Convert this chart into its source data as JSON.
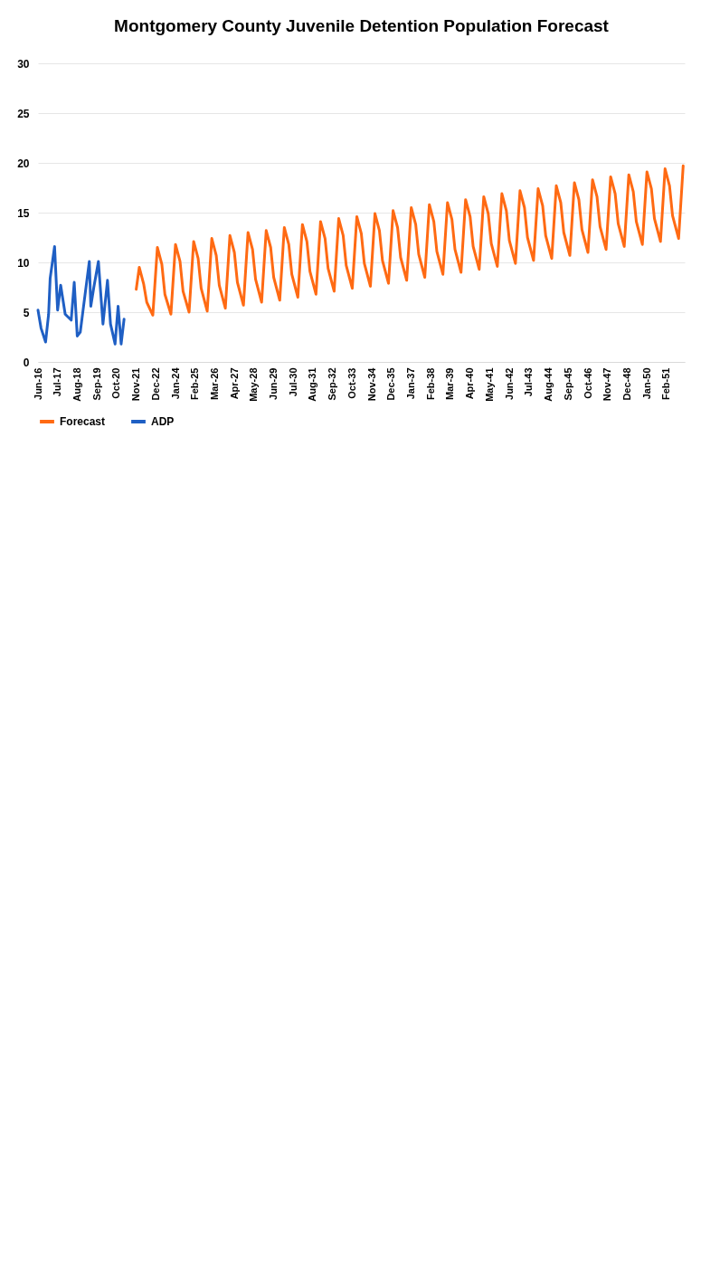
{
  "chart_data": {
    "type": "line",
    "title": "Montgomery County Juvenile Detention Population Forecast",
    "xlim": [
      "2016-06",
      "2052-02"
    ],
    "xticks": [
      {
        "value": "2016-06",
        "label": "Jun-16"
      },
      {
        "value": "2017-07",
        "label": "Jul-17"
      },
      {
        "value": "2018-08",
        "label": "Aug-18"
      },
      {
        "value": "2019-09",
        "label": "Sep-19"
      },
      {
        "value": "2020-10",
        "label": "Oct-20"
      },
      {
        "value": "2021-11",
        "label": "Nov-21"
      },
      {
        "value": "2022-12",
        "label": "Dec-22"
      },
      {
        "value": "2024-01",
        "label": "Jan-24"
      },
      {
        "value": "2025-02",
        "label": "Feb-25"
      },
      {
        "value": "2026-03",
        "label": "Mar-26"
      },
      {
        "value": "2027-04",
        "label": "Apr-27"
      },
      {
        "value": "2028-05",
        "label": "May-28"
      },
      {
        "value": "2029-06",
        "label": "Jun-29"
      },
      {
        "value": "2030-07",
        "label": "Jul-30"
      },
      {
        "value": "2031-08",
        "label": "Aug-31"
      },
      {
        "value": "2032-09",
        "label": "Sep-32"
      },
      {
        "value": "2033-10",
        "label": "Oct-33"
      },
      {
        "value": "2034-11",
        "label": "Nov-34"
      },
      {
        "value": "2035-12",
        "label": "Dec-35"
      },
      {
        "value": "2037-01",
        "label": "Jan-37"
      },
      {
        "value": "2038-02",
        "label": "Feb-38"
      },
      {
        "value": "2039-03",
        "label": "Mar-39"
      },
      {
        "value": "2040-04",
        "label": "Apr-40"
      },
      {
        "value": "2041-05",
        "label": "May-41"
      },
      {
        "value": "2042-06",
        "label": "Jun-42"
      },
      {
        "value": "2043-07",
        "label": "Jul-43"
      },
      {
        "value": "2044-08",
        "label": "Aug-44"
      },
      {
        "value": "2045-09",
        "label": "Sep-45"
      },
      {
        "value": "2046-10",
        "label": "Oct-46"
      },
      {
        "value": "2047-11",
        "label": "Nov-47"
      },
      {
        "value": "2048-12",
        "label": "Dec-48"
      },
      {
        "value": "2050-01",
        "label": "Jan-50"
      },
      {
        "value": "2051-02",
        "label": "Feb-51"
      }
    ],
    "ylim": [
      0,
      30
    ],
    "yticks": [
      0,
      5,
      10,
      15,
      20,
      25,
      30
    ],
    "grid": "y",
    "legend": "bottom",
    "series": [
      {
        "name": "Forecast",
        "color": "#ff6a13",
        "x": [
          "2021-11",
          "2022-01",
          "2022-04",
          "2022-06",
          "2022-10",
          "2023-01",
          "2023-04",
          "2023-06",
          "2023-10",
          "2024-01",
          "2024-04",
          "2024-06",
          "2024-10",
          "2025-01",
          "2025-04",
          "2025-06",
          "2025-10",
          "2026-01",
          "2026-04",
          "2026-06",
          "2026-10",
          "2027-01",
          "2027-04",
          "2027-06",
          "2027-10",
          "2028-01",
          "2028-04",
          "2028-06",
          "2028-10",
          "2029-01",
          "2029-04",
          "2029-06",
          "2029-10",
          "2030-01",
          "2030-04",
          "2030-06",
          "2030-10",
          "2031-01",
          "2031-04",
          "2031-06",
          "2031-10",
          "2032-01",
          "2032-04",
          "2032-06",
          "2032-10",
          "2033-01",
          "2033-04",
          "2033-06",
          "2033-10",
          "2034-01",
          "2034-04",
          "2034-06",
          "2034-10",
          "2035-01",
          "2035-04",
          "2035-06",
          "2035-10",
          "2036-01",
          "2036-04",
          "2036-06",
          "2036-10",
          "2037-01",
          "2037-04",
          "2037-06",
          "2037-10",
          "2038-01",
          "2038-04",
          "2038-06",
          "2038-10",
          "2039-01",
          "2039-04",
          "2039-06",
          "2039-10",
          "2040-01",
          "2040-04",
          "2040-06",
          "2040-10",
          "2041-01",
          "2041-04",
          "2041-06",
          "2041-10",
          "2042-01",
          "2042-04",
          "2042-06",
          "2042-10",
          "2043-01",
          "2043-04",
          "2043-06",
          "2043-10",
          "2044-01",
          "2044-04",
          "2044-06",
          "2044-10",
          "2045-01",
          "2045-04",
          "2045-06",
          "2045-10",
          "2046-01",
          "2046-04",
          "2046-06",
          "2046-10",
          "2047-01",
          "2047-04",
          "2047-06",
          "2047-10",
          "2048-01",
          "2048-04",
          "2048-06",
          "2048-10",
          "2049-01",
          "2049-04",
          "2049-06",
          "2049-10",
          "2050-01",
          "2050-04",
          "2050-06",
          "2050-10",
          "2051-01",
          "2051-04",
          "2051-06",
          "2051-10",
          "2052-01"
        ],
        "values": [
          7.3,
          9.5,
          7.8,
          6.0,
          4.7,
          11.5,
          9.8,
          6.8,
          4.8,
          11.8,
          10.1,
          7.1,
          5.0,
          12.1,
          10.4,
          7.4,
          5.1,
          12.4,
          10.7,
          7.7,
          5.4,
          12.7,
          11.0,
          8.0,
          5.7,
          13.0,
          11.3,
          8.3,
          6.0,
          13.2,
          11.5,
          8.5,
          6.2,
          13.5,
          11.8,
          8.8,
          6.5,
          13.8,
          12.1,
          9.1,
          6.8,
          14.1,
          12.4,
          9.4,
          7.1,
          14.4,
          12.7,
          9.7,
          7.4,
          14.6,
          12.9,
          9.9,
          7.6,
          14.9,
          13.2,
          10.2,
          7.9,
          15.2,
          13.5,
          10.5,
          8.2,
          15.5,
          13.8,
          10.8,
          8.5,
          15.8,
          14.1,
          11.1,
          8.8,
          16.0,
          14.3,
          11.3,
          9.0,
          16.3,
          14.6,
          11.6,
          9.3,
          16.6,
          14.9,
          11.9,
          9.6,
          16.9,
          15.2,
          12.2,
          9.9,
          17.2,
          15.5,
          12.5,
          10.2,
          17.4,
          15.7,
          12.7,
          10.4,
          17.7,
          16.0,
          13.0,
          10.7,
          18.0,
          16.3,
          13.3,
          11.0,
          18.3,
          16.6,
          13.6,
          11.3,
          18.6,
          16.9,
          13.9,
          11.6,
          18.8,
          17.1,
          14.1,
          11.8,
          19.1,
          17.4,
          14.4,
          12.1,
          19.4,
          17.7,
          14.7,
          12.4,
          19.7
        ]
      },
      {
        "name": "ADP",
        "color": "#1f5fc4",
        "x": [
          "2016-06",
          "2016-08",
          "2016-11",
          "2017-01",
          "2017-02",
          "2017-05",
          "2017-07",
          "2017-09",
          "2017-12",
          "2018-04",
          "2018-06",
          "2018-08",
          "2018-10",
          "2018-12",
          "2019-04",
          "2019-05",
          "2019-07",
          "2019-10",
          "2020-01",
          "2020-04",
          "2020-06",
          "2020-09",
          "2020-11",
          "2021-01",
          "2021-03"
        ],
        "values": [
          5.2,
          3.4,
          2.0,
          4.8,
          8.4,
          11.6,
          5.2,
          7.7,
          4.8,
          4.2,
          8.0,
          2.6,
          3.0,
          5.4,
          10.1,
          5.6,
          7.5,
          10.1,
          3.8,
          8.2,
          3.8,
          1.8,
          5.6,
          1.8,
          4.3
        ]
      }
    ]
  }
}
